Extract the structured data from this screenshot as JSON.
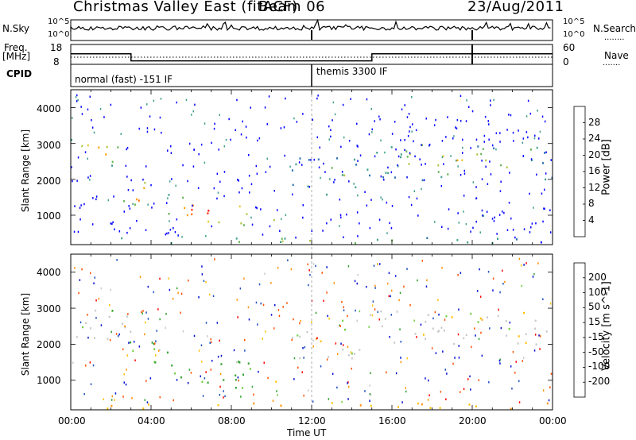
{
  "header": {
    "station": "Christmas Valley East (fitACF)",
    "beam": "Beam 06",
    "date": "23/Aug/2011"
  },
  "summary_panels": {
    "nsky_label": "N.Sky",
    "nsky_ticks": [
      "10^5",
      "10^0"
    ],
    "nsearch_label": "N.Search",
    "nsearch_ticks": [
      "10^5",
      "10^0"
    ],
    "freq_label": "Freq.",
    "freq_unit": "[MHz]",
    "freq_ticks": [
      "18",
      "8"
    ],
    "nave_label": "Nave",
    "nave_ticks": [
      "60",
      "0"
    ],
    "cpid_label": "CPID",
    "cpid_segments": [
      {
        "name": "normal (fast) -151 IF",
        "start_hour": 0,
        "end_hour": 12
      },
      {
        "name": "themis 3300 IF",
        "start_hour": 12,
        "end_hour": 24
      }
    ],
    "freq_values": [
      {
        "t": 0,
        "f": 14
      },
      {
        "t": 3,
        "f": 10
      },
      {
        "t": 15,
        "f": 14
      }
    ]
  },
  "x_axis": {
    "label": "Time UT",
    "ticks": [
      "00:00",
      "04:00",
      "08:00",
      "12:00",
      "16:00",
      "20:00",
      "00:00"
    ]
  },
  "power_panel": {
    "ylabel": "Slant Range [km]",
    "yticks": [
      "4000",
      "3000",
      "2000",
      "1000"
    ],
    "colorbar_label": "Power [dB]",
    "colorbar_ticks": [
      "28",
      "24",
      "20",
      "16",
      "12",
      "8",
      "4"
    ],
    "colors": [
      "#0000ff",
      "#2a6fb0",
      "#3d9e8c",
      "#63b34f",
      "#a8c83c",
      "#e8c828",
      "#ffa000",
      "#ff6a00",
      "#ff2a00",
      "#ff0000"
    ]
  },
  "velocity_panel": {
    "ylabel": "Slant Range [km]",
    "yticks": [
      "4000",
      "3000",
      "2000",
      "1000"
    ],
    "colorbar_label": "Velocity [m s^-1]",
    "colorbar_ticks": [
      "200",
      "100",
      "50",
      "15",
      "-15",
      "-50",
      "-100",
      "-200"
    ],
    "colors": [
      "#0010d0",
      "#2050c0",
      "#30a030",
      "#70d040",
      "#c8c8c8",
      "#ffc000",
      "#ff9000",
      "#ff5000",
      "#ff0000"
    ]
  },
  "chart_data": {
    "type": "heatmap",
    "title": "Christmas Valley East (fitACF) Beam 06 23/Aug/2011",
    "xlabel": "Time UT",
    "ylabel": "Slant Range [km]",
    "xlim_hours": [
      0,
      24
    ],
    "ylim_km": [
      180,
      4500
    ],
    "series": [
      {
        "name": "Power [dB]",
        "clim": [
          0,
          30
        ],
        "features": [
          {
            "t0": 0,
            "t1": 2.5,
            "r0": 2300,
            "r1": 3200,
            "peak_db": 24
          },
          {
            "t0": 2.5,
            "t1": 4.5,
            "r0": 1200,
            "r1": 2000,
            "peak_db": 26
          },
          {
            "t0": 4.5,
            "t1": 9,
            "r0": 700,
            "r1": 1600,
            "peak_db": 30
          },
          {
            "t0": 9.5,
            "t1": 10.5,
            "r0": 850,
            "r1": 1150,
            "peak_db": 22
          },
          {
            "t0": 11,
            "t1": 14.5,
            "r0": 1600,
            "r1": 2700,
            "peak_db": 16
          },
          {
            "t0": 14.5,
            "t1": 24,
            "r0": 2000,
            "r1": 3000,
            "peak_db": 18
          },
          {
            "t0": 0,
            "t1": 24,
            "r0": 200,
            "r1": 400,
            "peak_db": 12
          }
        ]
      },
      {
        "name": "Velocity [m s^-1]",
        "clim": [
          -200,
          200
        ],
        "features": [
          {
            "t0": 0,
            "t1": 3,
            "r0": 2000,
            "r1": 3000,
            "v": 0
          },
          {
            "t0": 2.5,
            "t1": 5,
            "r0": 1400,
            "r1": 2200,
            "v": 30
          },
          {
            "t0": 4.5,
            "t1": 9,
            "r0": 700,
            "r1": 1600,
            "v": 40
          },
          {
            "t0": 9.5,
            "t1": 10.5,
            "r0": 850,
            "r1": 1150,
            "v": -40
          },
          {
            "t0": 11,
            "t1": 14.5,
            "r0": 1600,
            "r1": 2700,
            "v": 0
          },
          {
            "t0": 14.5,
            "t1": 24,
            "r0": 2000,
            "r1": 3000,
            "v": 0
          },
          {
            "t0": 0,
            "t1": 24,
            "r0": 200,
            "r1": 400,
            "v": -50
          }
        ]
      }
    ],
    "grid": false,
    "legend": "right colorbars"
  }
}
